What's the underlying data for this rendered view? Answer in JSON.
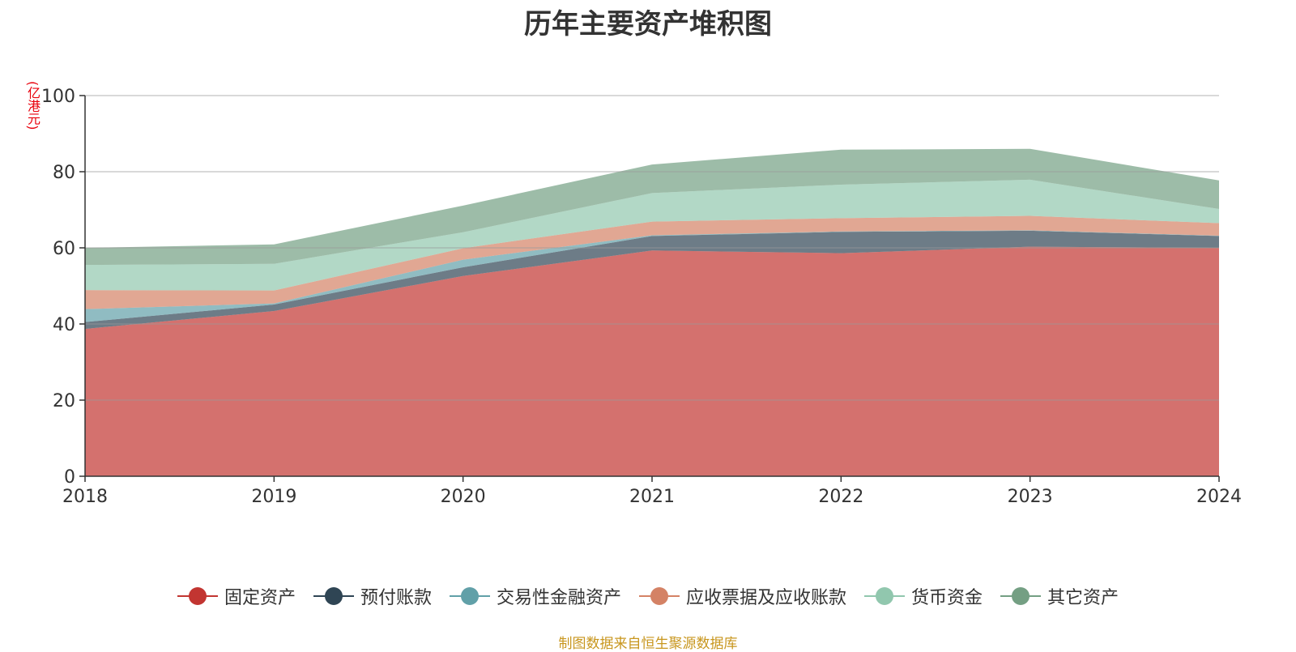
{
  "chart_data": {
    "type": "area",
    "title": "历年主要资产堆积图",
    "unit_label": "(亿港元)",
    "x": [
      "2018",
      "2019",
      "2020",
      "2021",
      "2022",
      "2023",
      "2024"
    ],
    "ylim": [
      0,
      100
    ],
    "yticks": [
      0,
      20,
      40,
      60,
      80,
      100
    ],
    "grid": true,
    "stacked": true,
    "legend_position": "bottom",
    "series": [
      {
        "name": "固定资产",
        "color": "#c23531",
        "values": [
          38.7,
          43.4,
          52.6,
          59.3,
          58.6,
          60.3,
          60.0
        ]
      },
      {
        "name": "预付账款",
        "color": "#2f4554",
        "values": [
          1.8,
          1.7,
          2.3,
          3.8,
          5.6,
          4.2,
          3.1
        ]
      },
      {
        "name": "交易性金融资产",
        "color": "#61a0a8",
        "values": [
          3.4,
          0.3,
          2.0,
          0.2,
          0.1,
          0.1,
          0.1
        ]
      },
      {
        "name": "应收票据及应收账款",
        "color": "#d48265",
        "values": [
          5.0,
          3.4,
          3.0,
          3.6,
          3.5,
          3.8,
          3.3
        ]
      },
      {
        "name": "货币资金",
        "color": "#91c7ae",
        "values": [
          6.6,
          7.0,
          4.2,
          7.5,
          8.8,
          9.5,
          3.7
        ]
      },
      {
        "name": "其它资产",
        "color": "#749f83",
        "values": [
          4.5,
          5.1,
          7.0,
          7.5,
          9.2,
          8.1,
          7.5
        ]
      }
    ]
  },
  "source_note": "制图数据来自恒生聚源数据库"
}
